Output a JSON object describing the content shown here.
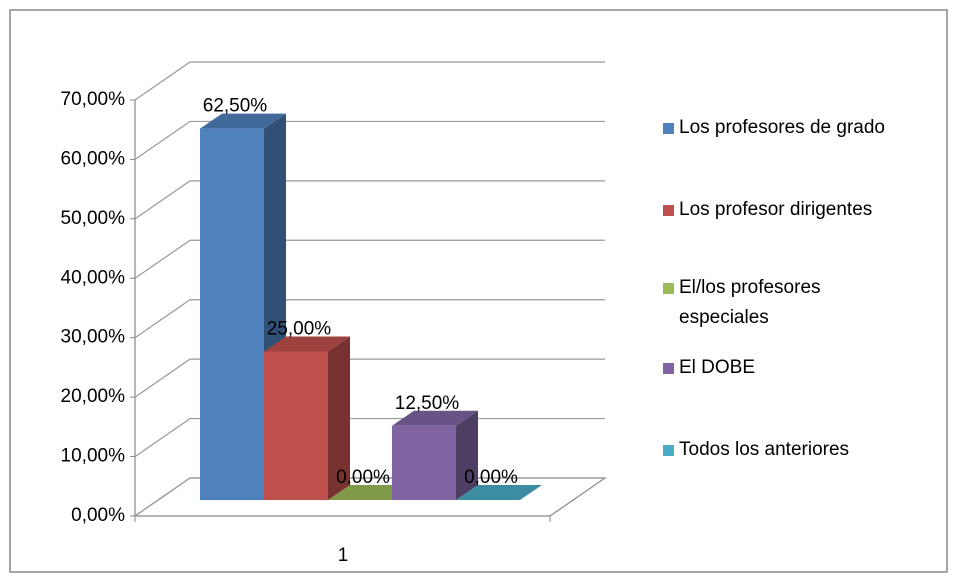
{
  "chart_data": {
    "type": "bar",
    "categories": [
      "1"
    ],
    "series": [
      {
        "name": "Los profesores de grado",
        "color": "#4f81bd",
        "values": [
          62.5
        ],
        "value_labels": [
          "62,50%"
        ]
      },
      {
        "name": "Los profesor dirigentes",
        "color": "#c0504d",
        "values": [
          25
        ],
        "value_labels": [
          "25,00%"
        ]
      },
      {
        "name": "El/los profesores especiales",
        "color": "#9bbb59",
        "values": [
          0
        ],
        "value_labels": [
          "0,00%"
        ]
      },
      {
        "name": "El DOBE",
        "color": "#8064a2",
        "values": [
          12.5
        ],
        "value_labels": [
          "12,50%"
        ]
      },
      {
        "name": "Todos los anteriores",
        "color": "#4bacc6",
        "values": [
          0
        ],
        "value_labels": [
          "0,00%"
        ]
      }
    ],
    "ylim": [
      0,
      70
    ],
    "yticks": [
      {
        "value": 0,
        "label": "0,00%"
      },
      {
        "value": 10,
        "label": "10,00%"
      },
      {
        "value": 20,
        "label": "20,00%"
      },
      {
        "value": 30,
        "label": "30,00%"
      },
      {
        "value": 40,
        "label": "40,00%"
      },
      {
        "value": 50,
        "label": "50,00%"
      },
      {
        "value": 60,
        "label": "60,00%"
      },
      {
        "value": 70,
        "label": "70,00%"
      }
    ],
    "grid": true,
    "legend": "right"
  }
}
